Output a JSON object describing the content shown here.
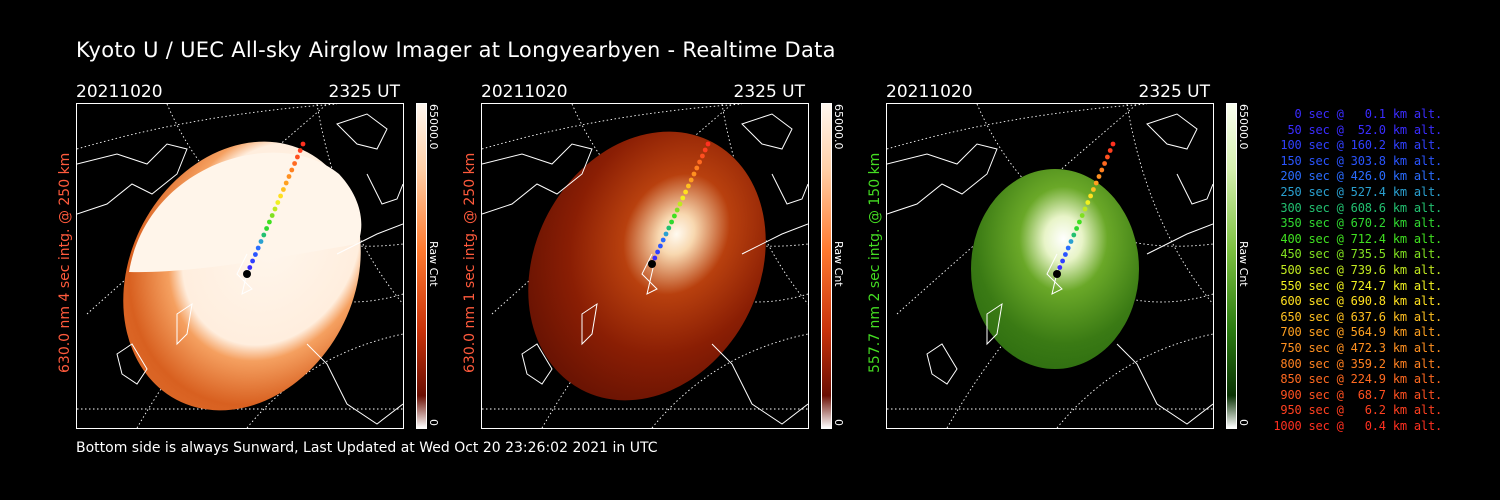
{
  "title": "Kyoto U / UEC All-sky Airglow Imager at Longyearbyen - Realtime Data",
  "footer": "Bottom side is always Sunward, Last Updated at Wed Oct 20 23:26:02 2021 in UTC",
  "panels": [
    {
      "date": "20211020",
      "time": "2325 UT",
      "side_label": "630.0 nm 4 sec intg. @ 250 km",
      "side_color": "#ff5a3c",
      "colorbar_max": "65000.0",
      "colorbar_min": "0",
      "colorbar_unit": "Raw Cnt",
      "colormap": "red",
      "brightness": "saturated-top"
    },
    {
      "date": "20211020",
      "time": "2325 UT",
      "side_label": "630.0 nm 1 sec intg. @ 250 km",
      "side_color": "#ff5a3c",
      "colorbar_max": "65000.0",
      "colorbar_min": "0",
      "colorbar_unit": "Raw Cnt",
      "colormap": "red",
      "brightness": "dim-auroral-spot"
    },
    {
      "date": "20211020",
      "time": "2325 UT",
      "side_label": "557.7 nm 2 sec intg. @ 150 km",
      "side_color": "#44dd22",
      "colorbar_max": "65000.0",
      "colorbar_min": "0",
      "colorbar_unit": "Raw Cnt",
      "colormap": "green",
      "brightness": "green-auroral-spot"
    }
  ],
  "legend": [
    {
      "text": "0 sec @   0.1 km alt.",
      "color": "#3a2cff"
    },
    {
      "text": "50 sec @  52.0 km alt.",
      "color": "#3a2cff"
    },
    {
      "text": "100 sec @ 160.2 km alt.",
      "color": "#3040ff"
    },
    {
      "text": "150 sec @ 303.8 km alt.",
      "color": "#2a55ff"
    },
    {
      "text": "200 sec @ 426.0 km alt.",
      "color": "#2a6cff"
    },
    {
      "text": "250 sec @ 527.4 km alt.",
      "color": "#2aa0d0"
    },
    {
      "text": "300 sec @ 608.6 km alt.",
      "color": "#22c070"
    },
    {
      "text": "350 sec @ 670.2 km alt.",
      "color": "#30d830"
    },
    {
      "text": "400 sec @ 712.4 km alt.",
      "color": "#40e020"
    },
    {
      "text": "450 sec @ 735.5 km alt.",
      "color": "#80e020"
    },
    {
      "text": "500 sec @ 739.6 km alt.",
      "color": "#c0e820"
    },
    {
      "text": "550 sec @ 724.7 km alt.",
      "color": "#f0f020"
    },
    {
      "text": "600 sec @ 690.8 km alt.",
      "color": "#ffe020"
    },
    {
      "text": "650 sec @ 637.6 km alt.",
      "color": "#ffc020"
    },
    {
      "text": "700 sec @ 564.9 km alt.",
      "color": "#ffa020"
    },
    {
      "text": "750 sec @ 472.3 km alt.",
      "color": "#ff9020"
    },
    {
      "text": "800 sec @ 359.2 km alt.",
      "color": "#ff8020"
    },
    {
      "text": "850 sec @ 224.9 km alt.",
      "color": "#ff6a20"
    },
    {
      "text": "900 sec @  68.7 km alt.",
      "color": "#ff5020"
    },
    {
      "text": "950 sec @   6.2 km alt.",
      "color": "#ff4020"
    },
    {
      "text": "1000 sec @   0.4 km alt.",
      "color": "#ff3020"
    }
  ]
}
